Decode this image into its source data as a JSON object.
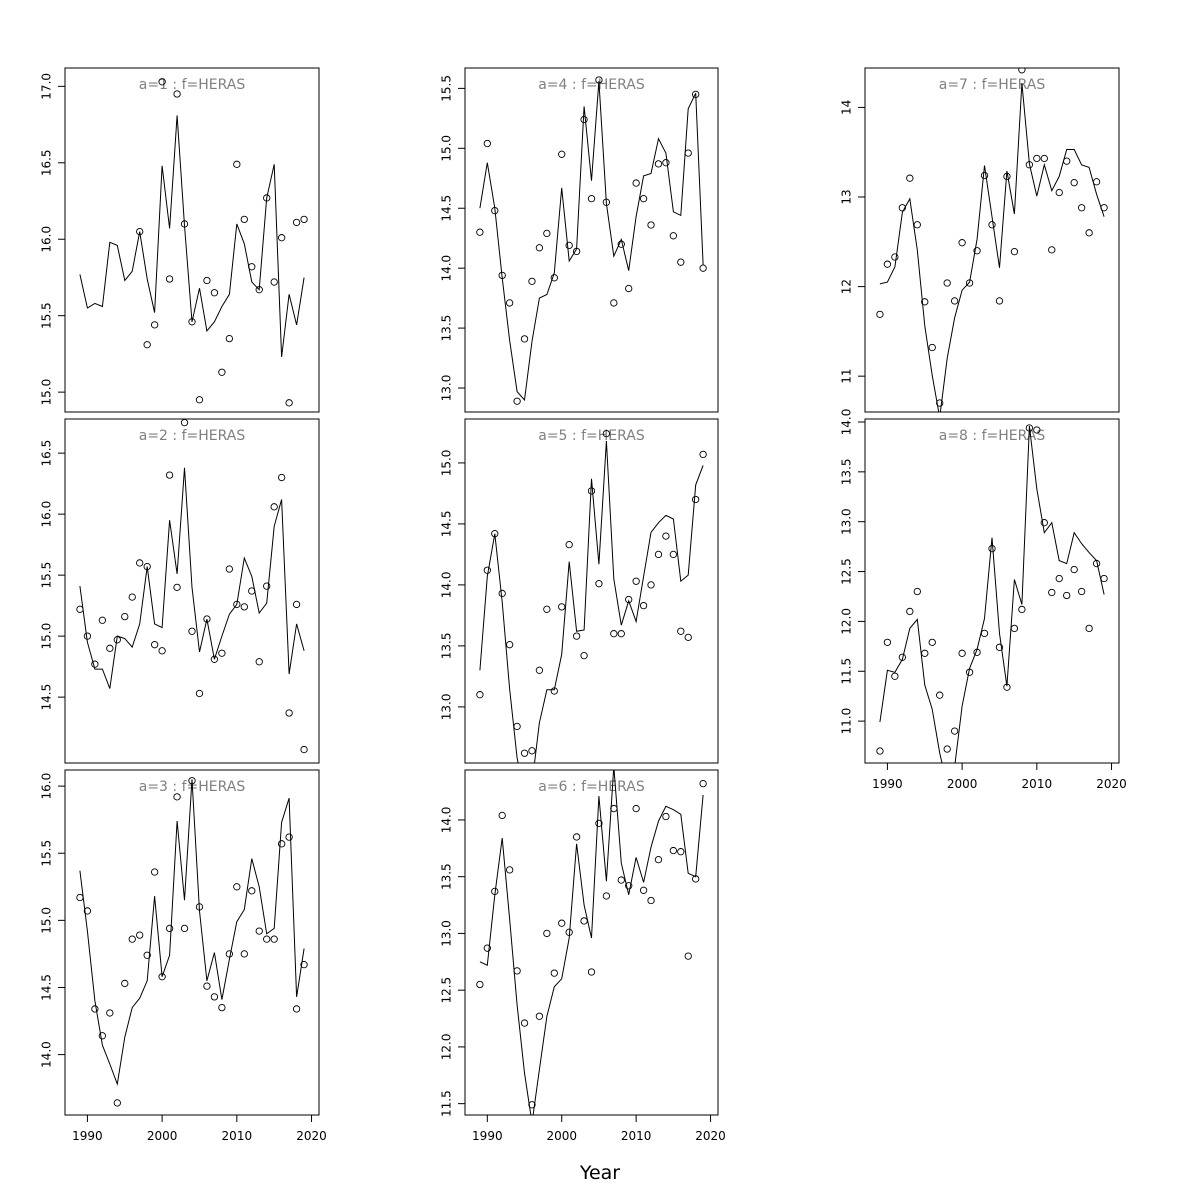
{
  "xlabel": "Year",
  "chart_data": [
    {
      "type": "scatter",
      "title": "a=1 : f=HERAS",
      "xlim": [
        1987,
        2021
      ],
      "ylim": [
        14.87,
        17.12
      ],
      "yticks": [
        "15.0",
        "15.5",
        "16.0",
        "16.5",
        "17.0"
      ],
      "xticks": [],
      "x": [
        1989,
        1990,
        1991,
        1992,
        1993,
        1994,
        1995,
        1996,
        1997,
        1998,
        1999,
        2000,
        2001,
        2002,
        2003,
        2004,
        2005,
        2006,
        2007,
        2008,
        2009,
        2010,
        2011,
        2012,
        2013,
        2014,
        2015,
        2016,
        2017,
        2018,
        2019
      ],
      "observed": [
        null,
        null,
        null,
        null,
        null,
        null,
        null,
        null,
        16.05,
        15.31,
        15.44,
        17.03,
        15.74,
        16.95,
        16.1,
        15.46,
        14.95,
        15.73,
        15.65,
        15.13,
        15.35,
        16.49,
        16.13,
        15.82,
        15.67,
        16.27,
        15.72,
        16.01,
        14.93,
        16.11,
        16.13
      ],
      "fitted": [
        15.77,
        15.55,
        15.58,
        15.56,
        15.98,
        15.96,
        15.73,
        15.79,
        16.05,
        15.74,
        15.52,
        16.48,
        16.07,
        16.81,
        16.09,
        15.46,
        15.68,
        15.4,
        15.46,
        15.56,
        15.64,
        16.1,
        15.97,
        15.72,
        15.67,
        16.27,
        16.49,
        15.23,
        15.64,
        15.44,
        15.75
      ]
    },
    {
      "type": "scatter",
      "title": "a=2 : f=HERAS",
      "xlim": [
        1987,
        2021
      ],
      "ylim": [
        13.96,
        16.78
      ],
      "yticks": [
        "14.5",
        "15.0",
        "15.5",
        "16.0",
        "16.5"
      ],
      "xticks": [],
      "x": [
        1989,
        1990,
        1991,
        1992,
        1993,
        1994,
        1995,
        1996,
        1997,
        1998,
        1999,
        2000,
        2001,
        2002,
        2003,
        2004,
        2005,
        2006,
        2007,
        2008,
        2009,
        2010,
        2011,
        2012,
        2013,
        2014,
        2015,
        2016,
        2017,
        2018,
        2019
      ],
      "observed": [
        15.22,
        15.0,
        14.77,
        15.13,
        14.9,
        14.97,
        15.16,
        15.32,
        15.6,
        15.57,
        14.93,
        14.88,
        16.32,
        15.4,
        16.75,
        15.04,
        14.53,
        15.14,
        14.81,
        14.86,
        15.55,
        15.26,
        15.24,
        15.37,
        14.79,
        15.41,
        16.06,
        16.3,
        14.37,
        15.26,
        14.07
      ],
      "fitted": [
        15.41,
        14.95,
        14.73,
        14.73,
        14.57,
        15.0,
        14.98,
        14.91,
        15.1,
        15.57,
        15.1,
        15.07,
        15.95,
        15.51,
        16.38,
        15.4,
        14.87,
        15.14,
        14.81,
        15.0,
        15.18,
        15.26,
        15.64,
        15.49,
        15.19,
        15.27,
        15.9,
        16.12,
        14.69,
        15.1,
        14.88
      ]
    },
    {
      "type": "scatter",
      "title": "a=3 : f=HERAS",
      "xlim": [
        1987,
        2021
      ],
      "ylim": [
        13.55,
        16.12
      ],
      "yticks": [
        "14.0",
        "14.5",
        "15.0",
        "15.5",
        "16.0"
      ],
      "xticks": [
        "1990",
        "2000",
        "2010",
        "2020"
      ],
      "x": [
        1989,
        1990,
        1991,
        1992,
        1993,
        1994,
        1995,
        1996,
        1997,
        1998,
        1999,
        2000,
        2001,
        2002,
        2003,
        2004,
        2005,
        2006,
        2007,
        2008,
        2009,
        2010,
        2011,
        2012,
        2013,
        2014,
        2015,
        2016,
        2017,
        2018,
        2019
      ],
      "observed": [
        15.17,
        15.07,
        14.34,
        14.14,
        14.31,
        13.64,
        14.53,
        14.86,
        14.89,
        14.74,
        15.36,
        14.58,
        14.94,
        15.92,
        14.94,
        16.04,
        15.1,
        14.51,
        14.43,
        14.35,
        14.75,
        15.25,
        14.75,
        15.22,
        14.92,
        14.86,
        14.86,
        15.57,
        15.62,
        14.34,
        14.67
      ],
      "fitted": [
        15.37,
        14.92,
        14.4,
        14.07,
        13.93,
        13.78,
        14.13,
        14.35,
        14.42,
        14.55,
        15.18,
        14.58,
        14.74,
        15.74,
        15.15,
        16.05,
        15.07,
        14.55,
        14.76,
        14.41,
        14.71,
        14.99,
        15.08,
        15.46,
        15.25,
        14.9,
        14.94,
        15.73,
        15.91,
        14.43,
        14.79
      ]
    },
    {
      "type": "scatter",
      "title": "a=4 : f=HERAS",
      "xlim": [
        1987,
        2021
      ],
      "ylim": [
        12.8,
        15.67
      ],
      "yticks": [
        "13.0",
        "13.5",
        "14.0",
        "14.5",
        "15.0",
        "15.5"
      ],
      "xticks": [],
      "x": [
        1989,
        1990,
        1991,
        1992,
        1993,
        1994,
        1995,
        1996,
        1997,
        1998,
        1999,
        2000,
        2001,
        2002,
        2003,
        2004,
        2005,
        2006,
        2007,
        2008,
        2009,
        2010,
        2011,
        2012,
        2013,
        2014,
        2015,
        2016,
        2017,
        2018,
        2019
      ],
      "observed": [
        14.3,
        15.04,
        14.48,
        13.94,
        13.71,
        12.89,
        13.41,
        13.89,
        14.17,
        14.29,
        13.92,
        14.95,
        14.19,
        14.14,
        15.24,
        14.58,
        15.57,
        14.55,
        13.71,
        14.2,
        13.83,
        14.71,
        14.58,
        14.36,
        14.87,
        14.88,
        14.27,
        14.05,
        14.96,
        15.45,
        14.0
      ],
      "fitted": [
        14.5,
        14.88,
        14.5,
        13.92,
        13.4,
        12.97,
        12.9,
        13.39,
        13.75,
        13.78,
        13.96,
        14.67,
        14.06,
        14.16,
        15.35,
        14.73,
        15.56,
        14.54,
        14.1,
        14.24,
        13.98,
        14.43,
        14.77,
        14.79,
        15.08,
        14.96,
        14.47,
        14.44,
        15.33,
        15.46,
        14.03
      ]
    },
    {
      "type": "scatter",
      "title": "a=5 : f=HERAS",
      "xlim": [
        1987,
        2021
      ],
      "ylim": [
        12.54,
        15.36
      ],
      "yticks": [
        "13.0",
        "13.5",
        "14.0",
        "14.5",
        "15.0"
      ],
      "xticks": [],
      "x": [
        1989,
        1990,
        1991,
        1992,
        1993,
        1994,
        1995,
        1996,
        1997,
        1998,
        1999,
        2000,
        2001,
        2002,
        2003,
        2004,
        2005,
        2006,
        2007,
        2008,
        2009,
        2010,
        2011,
        2012,
        2013,
        2014,
        2015,
        2016,
        2017,
        2018,
        2019
      ],
      "observed": [
        13.1,
        14.12,
        14.42,
        13.93,
        13.51,
        12.84,
        12.62,
        12.64,
        13.3,
        13.8,
        13.13,
        13.82,
        14.33,
        13.58,
        13.42,
        14.77,
        14.01,
        15.24,
        13.6,
        13.6,
        13.88,
        14.03,
        13.83,
        14.0,
        14.25,
        14.4,
        14.25,
        13.62,
        13.57,
        14.7,
        15.07
      ],
      "fitted": [
        13.3,
        14.07,
        14.42,
        13.86,
        13.15,
        12.58,
        12.3,
        12.37,
        12.87,
        13.14,
        13.14,
        13.43,
        14.19,
        13.62,
        13.63,
        14.87,
        14.17,
        15.18,
        14.05,
        13.67,
        13.87,
        13.7,
        14.07,
        14.43,
        14.51,
        14.57,
        14.54,
        14.03,
        14.08,
        14.82,
        14.98
      ]
    },
    {
      "type": "scatter",
      "title": "a=6 : f=HERAS",
      "xlim": [
        1987,
        2021
      ],
      "ylim": [
        11.4,
        14.44
      ],
      "yticks": [
        "11.5",
        "12.0",
        "12.5",
        "13.0",
        "13.5",
        "14.0"
      ],
      "xticks": [
        "1990",
        "2000",
        "2010",
        "2020"
      ],
      "x": [
        1989,
        1990,
        1991,
        1992,
        1993,
        1994,
        1995,
        1996,
        1997,
        1998,
        1999,
        2000,
        2001,
        2002,
        2003,
        2004,
        2005,
        2006,
        2007,
        2008,
        2009,
        2010,
        2011,
        2012,
        2013,
        2014,
        2015,
        2016,
        2017,
        2018,
        2019
      ],
      "observed": [
        12.55,
        12.87,
        13.37,
        14.04,
        13.56,
        12.67,
        12.21,
        11.49,
        12.27,
        13.0,
        12.65,
        13.09,
        13.01,
        13.85,
        13.11,
        12.66,
        13.97,
        13.33,
        14.1,
        13.47,
        13.42,
        14.1,
        13.38,
        13.29,
        13.65,
        14.03,
        13.73,
        13.72,
        12.8,
        13.48,
        14.32
      ],
      "fitted": [
        12.75,
        12.72,
        13.34,
        13.84,
        13.13,
        12.37,
        11.77,
        11.33,
        11.8,
        12.27,
        12.53,
        12.6,
        12.96,
        13.79,
        13.25,
        12.96,
        14.21,
        13.46,
        14.47,
        13.62,
        13.34,
        13.67,
        13.45,
        13.76,
        13.99,
        14.12,
        14.09,
        14.05,
        13.53,
        13.5,
        14.22
      ]
    },
    {
      "type": "scatter",
      "title": "a=7 : f=HERAS",
      "xlim": [
        1987,
        2021
      ],
      "ylim": [
        10.6,
        14.44
      ],
      "yticks": [
        "11",
        "12",
        "13",
        "14"
      ],
      "xticks": [],
      "x": [
        1989,
        1990,
        1991,
        1992,
        1993,
        1994,
        1995,
        1996,
        1997,
        1998,
        1999,
        2000,
        2001,
        2002,
        2003,
        2004,
        2005,
        2006,
        2007,
        2008,
        2009,
        2010,
        2011,
        2012,
        2013,
        2014,
        2015,
        2016,
        2017,
        2018,
        2019
      ],
      "observed": [
        11.69,
        12.25,
        12.33,
        12.88,
        13.21,
        12.69,
        11.83,
        11.32,
        10.7,
        12.04,
        11.84,
        12.49,
        12.04,
        12.4,
        13.24,
        12.69,
        11.84,
        13.23,
        12.39,
        14.42,
        13.36,
        13.43,
        13.43,
        12.41,
        13.05,
        13.4,
        13.16,
        12.88,
        12.6,
        13.17,
        12.88
      ],
      "fitted": [
        12.03,
        12.05,
        12.22,
        12.83,
        12.98,
        12.41,
        11.56,
        11.01,
        10.54,
        11.2,
        11.65,
        11.96,
        12.05,
        12.53,
        13.35,
        12.78,
        12.21,
        13.29,
        12.81,
        14.27,
        13.37,
        13.01,
        13.36,
        13.07,
        13.23,
        13.53,
        13.53,
        13.36,
        13.33,
        13.03,
        12.78
      ]
    },
    {
      "type": "scatter",
      "title": "a=8 : f=HERAS",
      "xlim": [
        1987,
        2021
      ],
      "ylim": [
        10.58,
        14.03
      ],
      "yticks": [
        "11.0",
        "11.5",
        "12.0",
        "12.5",
        "13.0",
        "13.5",
        "14.0"
      ],
      "xticks": [
        "1990",
        "2000",
        "2010",
        "2020"
      ],
      "x": [
        1989,
        1990,
        1991,
        1992,
        1993,
        1994,
        1995,
        1996,
        1997,
        1998,
        1999,
        2000,
        2001,
        2002,
        2003,
        2004,
        2005,
        2006,
        2007,
        2008,
        2009,
        2010,
        2011,
        2012,
        2013,
        2014,
        2015,
        2016,
        2017,
        2018,
        2019
      ],
      "observed": [
        10.7,
        11.79,
        11.45,
        11.64,
        12.1,
        12.3,
        11.68,
        11.79,
        11.26,
        10.72,
        10.9,
        11.68,
        11.49,
        11.69,
        11.88,
        12.73,
        11.74,
        11.34,
        11.93,
        12.12,
        13.94,
        13.92,
        12.99,
        12.29,
        12.43,
        12.26,
        12.52,
        12.3,
        11.93,
        12.58,
        12.43
      ],
      "fitted": [
        10.99,
        11.51,
        11.49,
        11.62,
        11.93,
        12.02,
        11.36,
        11.12,
        10.68,
        10.35,
        10.54,
        11.15,
        11.53,
        11.72,
        12.03,
        12.84,
        11.88,
        11.35,
        12.42,
        12.17,
        13.96,
        13.33,
        12.89,
        12.99,
        12.61,
        12.58,
        12.89,
        12.78,
        12.69,
        12.61,
        12.27
      ]
    }
  ]
}
